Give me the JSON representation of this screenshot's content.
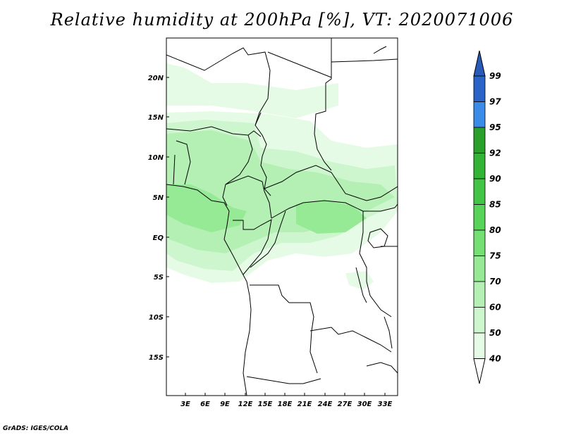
{
  "title": "Relative humidity at 200hPa [%], VT: 2020071006",
  "credit": "GrADS: IGES/COLA",
  "map": {
    "lat_labels": [
      "20N",
      "15N",
      "10N",
      "5N",
      "EQ",
      "5S",
      "10S",
      "15S"
    ],
    "lon_labels": [
      "3E",
      "6E",
      "9E",
      "12E",
      "15E",
      "18E",
      "21E",
      "24E",
      "27E",
      "30E",
      "33E"
    ]
  },
  "colorbar": {
    "labels": [
      "99",
      "97",
      "95",
      "92",
      "90",
      "85",
      "80",
      "75",
      "70",
      "60",
      "50",
      "40"
    ],
    "colors": [
      "#2a64c8",
      "#3b8be8",
      "#2aa02a",
      "#34b434",
      "#44c444",
      "#58d458",
      "#74e074",
      "#96ea96",
      "#b4f0b4",
      "#cef6ce",
      "#e6fbe6"
    ],
    "top_arrow_color": "#2a5ab8",
    "bottom_arrow_color": "#ffffff"
  }
}
